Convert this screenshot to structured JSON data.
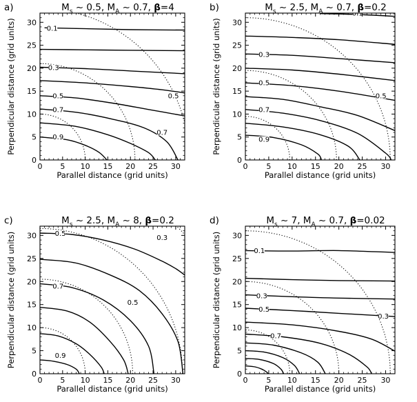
{
  "figure": {
    "background": "#ffffff",
    "ink": "#000000"
  },
  "chart_data": [
    {
      "type": "contour",
      "panel": "a)",
      "title_parts": [
        "M",
        "s",
        " ~ 0.5, M",
        "A",
        " ~ 0.7, ",
        "β",
        "=4"
      ],
      "xlabel": "Parallel distance (grid units)",
      "ylabel": "Perpendicular distance (grid units)",
      "xlim": [
        0,
        32
      ],
      "ylim": [
        0,
        32
      ],
      "xticks": [
        0,
        5,
        10,
        15,
        20,
        25,
        30
      ],
      "yticks": [
        0,
        5,
        10,
        15,
        20,
        25,
        30
      ],
      "contours": [
        {
          "points": [
            [
              1,
              28.8
            ],
            [
              10,
              28.6
            ],
            [
              20,
              28.4
            ],
            [
              32,
              28.3
            ]
          ]
        },
        {
          "points": [
            [
              0,
              24.1
            ],
            [
              10,
              24.0
            ],
            [
              20,
              23.9
            ],
            [
              32,
              23.8
            ]
          ]
        },
        {
          "points": [
            [
              0,
              20.2
            ],
            [
              10,
              19.9
            ],
            [
              20,
              19.4
            ],
            [
              32,
              18.8
            ]
          ]
        },
        {
          "points": [
            [
              0,
              17.3
            ],
            [
              10,
              16.8
            ],
            [
              20,
              16.0
            ],
            [
              27,
              15.3
            ],
            [
              32,
              14.6
            ]
          ]
        },
        {
          "points": [
            [
              0,
              14.0
            ],
            [
              8,
              13.5
            ],
            [
              16,
              12.4
            ],
            [
              24,
              11.0
            ],
            [
              32,
              9.6
            ]
          ]
        },
        {
          "points": [
            [
              0,
              11.1
            ],
            [
              8,
              10.4
            ],
            [
              16,
              8.9
            ],
            [
              23,
              7.0
            ],
            [
              28,
              4.0
            ],
            [
              30.5,
              0
            ]
          ]
        },
        {
          "points": [
            [
              0,
              8.1
            ],
            [
              8,
              7.3
            ],
            [
              15,
              5.5
            ],
            [
              20,
              3.6
            ],
            [
              24,
              1.6
            ],
            [
              25.5,
              0
            ]
          ]
        },
        {
          "points": [
            [
              0,
              5.0
            ],
            [
              6,
              4.4
            ],
            [
              10,
              3.2
            ],
            [
              13,
              1.7
            ],
            [
              14.8,
              0
            ]
          ]
        }
      ],
      "dotted_arcs": [
        {
          "r": 10
        },
        {
          "r": 21
        },
        {
          "r": 33
        }
      ],
      "labels": [
        {
          "text": "0.1",
          "x": 2.7,
          "y": 28.7
        },
        {
          "text": "0.3",
          "x": 3.0,
          "y": 20.1
        },
        {
          "text": "0.5",
          "x": 29.5,
          "y": 14.0
        },
        {
          "text": "0.5",
          "x": 4.0,
          "y": 14.0
        },
        {
          "text": "0.7",
          "x": 27.0,
          "y": 6.0
        },
        {
          "text": "0.7",
          "x": 4.0,
          "y": 11.0
        },
        {
          "text": "0.9",
          "x": 4.0,
          "y": 5.0
        }
      ]
    },
    {
      "type": "contour",
      "panel": "b)",
      "title_parts": [
        "M",
        "s",
        " ~ 2.5, M",
        "A",
        " ~ 0.7, ",
        "β",
        "=0.2"
      ],
      "xlabel": "Parallel distance (grid units)",
      "ylabel": "Perpendicular distance (grid units)",
      "xlim": [
        0,
        32
      ],
      "ylim": [
        0,
        32
      ],
      "xticks": [
        0,
        5,
        10,
        15,
        20,
        25,
        30
      ],
      "yticks": [
        0,
        5,
        10,
        15,
        20,
        25,
        30
      ],
      "contours": [
        {
          "points": [
            [
              16,
              31.9
            ],
            [
              24,
              31.7
            ],
            [
              32,
              31.3
            ]
          ]
        },
        {
          "points": [
            [
              0,
              27.0
            ],
            [
              10,
              26.7
            ],
            [
              20,
              26.2
            ],
            [
              32,
              25.2
            ]
          ]
        },
        {
          "points": [
            [
              0,
              23.1
            ],
            [
              10,
              22.8
            ],
            [
              20,
              22.1
            ],
            [
              32,
              21.2
            ]
          ]
        },
        {
          "points": [
            [
              0,
              20.0
            ],
            [
              10,
              19.6
            ],
            [
              20,
              18.7
            ],
            [
              32,
              17.3
            ]
          ]
        },
        {
          "points": [
            [
              0,
              16.8
            ],
            [
              10,
              16.2
            ],
            [
              20,
              15.0
            ],
            [
              32,
              13.0
            ]
          ]
        },
        {
          "points": [
            [
              0,
              13.8
            ],
            [
              8,
              13.2
            ],
            [
              16,
              11.6
            ],
            [
              24,
              9.7
            ],
            [
              32,
              6.4
            ]
          ]
        },
        {
          "points": [
            [
              0,
              11.0
            ],
            [
              8,
              10.2
            ],
            [
              16,
              8.6
            ],
            [
              24,
              5.8
            ],
            [
              30,
              1.5
            ],
            [
              31.2,
              0
            ]
          ]
        },
        {
          "points": [
            [
              0,
              8.0
            ],
            [
              8,
              7.2
            ],
            [
              16,
              5.5
            ],
            [
              22,
              3.0
            ],
            [
              24.5,
              0
            ]
          ]
        },
        {
          "points": [
            [
              0,
              5.4
            ],
            [
              6,
              4.9
            ],
            [
              12,
              3.3
            ],
            [
              15.5,
              1.3
            ],
            [
              16.3,
              0
            ]
          ]
        }
      ],
      "dotted_arcs": [
        {
          "r": 9.5
        },
        {
          "r": 19.5
        },
        {
          "r": 31
        },
        {
          "r": 45
        }
      ],
      "labels": [
        {
          "text": "0.1",
          "x": 24.0,
          "y": 32.0
        },
        {
          "text": "0.3",
          "x": 4.0,
          "y": 23.0
        },
        {
          "text": "0.5",
          "x": 4.0,
          "y": 16.8
        },
        {
          "text": "0.5",
          "x": 29.0,
          "y": 14.0
        },
        {
          "text": "0.7",
          "x": 4.0,
          "y": 11.0
        },
        {
          "text": "0.9",
          "x": 4.0,
          "y": 4.5
        }
      ]
    },
    {
      "type": "contour",
      "panel": "c)",
      "title_parts": [
        "M",
        "s",
        " ~ 2.5, M",
        "A",
        " ~ 8, ",
        "β",
        "=0.2"
      ],
      "xlabel": "Parallel distance (grid units)",
      "ylabel": "Perpendicular distance (grid units)",
      "xlim": [
        0,
        32
      ],
      "ylim": [
        0,
        32
      ],
      "xticks": [
        0,
        5,
        10,
        15,
        20,
        25,
        30
      ],
      "yticks": [
        0,
        5,
        10,
        15,
        20,
        25,
        30
      ],
      "contours": [
        {
          "points": [
            [
              0,
              30.5
            ],
            [
              7,
              30.2
            ],
            [
              14,
              29.0
            ],
            [
              21,
              27.0
            ],
            [
              27,
              24.4
            ],
            [
              30,
              22.8
            ],
            [
              32,
              21.4
            ]
          ]
        },
        {
          "points": [
            [
              0,
              24.8
            ],
            [
              8,
              24.0
            ],
            [
              16,
              21.2
            ],
            [
              22,
              18.0
            ],
            [
              27,
              13.0
            ],
            [
              30.5,
              7.0
            ],
            [
              31.6,
              0
            ]
          ]
        },
        {
          "points": [
            [
              0,
              19.5
            ],
            [
              7,
              18.7
            ],
            [
              14,
              16.0
            ],
            [
              20,
              11.5
            ],
            [
              24,
              6.0
            ],
            [
              25.2,
              0
            ]
          ]
        },
        {
          "points": [
            [
              0,
              14.4
            ],
            [
              6,
              13.6
            ],
            [
              11,
              11.2
            ],
            [
              15.5,
              7.0
            ],
            [
              18.5,
              3.0
            ],
            [
              19.5,
              0
            ]
          ]
        },
        {
          "points": [
            [
              0,
              8.7
            ],
            [
              4,
              8.2
            ],
            [
              8,
              6.5
            ],
            [
              11,
              4.2
            ],
            [
              13.5,
              1.5
            ],
            [
              14.2,
              0
            ]
          ]
        },
        {
          "points": [
            [
              0,
              3.0
            ],
            [
              3,
              2.7
            ],
            [
              6,
              2.0
            ],
            [
              8,
              1.0
            ],
            [
              8.7,
              0
            ]
          ]
        }
      ],
      "dotted_arcs": [
        {
          "r": 10
        },
        {
          "r": 20.5
        },
        {
          "r": 31.5
        },
        {
          "r": 44
        }
      ],
      "labels": [
        {
          "text": "0.5",
          "x": 4.5,
          "y": 30.4
        },
        {
          "text": "0.3",
          "x": 27.0,
          "y": 29.5
        },
        {
          "text": "0.7",
          "x": 4.0,
          "y": 19.0
        },
        {
          "text": "0.5",
          "x": 20.5,
          "y": 15.5
        },
        {
          "text": "0.9",
          "x": 4.5,
          "y": 4.0
        }
      ]
    },
    {
      "type": "contour",
      "panel": "d)",
      "title_parts": [
        "M",
        "s",
        " ~ 7, M",
        "A",
        " ~ 0.7, ",
        "β",
        "=0.02"
      ],
      "xlabel": "Parallel distance (grid units)",
      "ylabel": "Perpendicular distance (grid units)",
      "xlim": [
        0,
        32
      ],
      "ylim": [
        0,
        32
      ],
      "xticks": [
        0,
        5,
        10,
        15,
        20,
        25,
        30
      ],
      "yticks": [
        0,
        5,
        10,
        15,
        20,
        25,
        30
      ],
      "contours": [
        {
          "points": [
            [
              0,
              26.7
            ],
            [
              10,
              26.6
            ],
            [
              20,
              26.7
            ],
            [
              32,
              26.3
            ]
          ]
        },
        {
          "points": [
            [
              0,
              20.7
            ],
            [
              10,
              20.4
            ],
            [
              20,
              20.2
            ],
            [
              32,
              20.1
            ]
          ]
        },
        {
          "points": [
            [
              0,
              17.1
            ],
            [
              10,
              16.7
            ],
            [
              20,
              16.4
            ],
            [
              32,
              16.2
            ]
          ]
        },
        {
          "points": [
            [
              0,
              14.2
            ],
            [
              10,
              13.7
            ],
            [
              20,
              13.1
            ],
            [
              32,
              12.4
            ]
          ]
        },
        {
          "points": [
            [
              0,
              11.2
            ],
            [
              10,
              10.6
            ],
            [
              20,
              9.2
            ],
            [
              27,
              7.5
            ],
            [
              32,
              4.9
            ]
          ]
        },
        {
          "points": [
            [
              0,
              8.6
            ],
            [
              8,
              8.0
            ],
            [
              16,
              6.6
            ],
            [
              22,
              4.3
            ],
            [
              26,
              1.5
            ],
            [
              27,
              0
            ]
          ]
        },
        {
          "points": [
            [
              0,
              6.7
            ],
            [
              6,
              6.2
            ],
            [
              12,
              4.5
            ],
            [
              15.5,
              2.5
            ],
            [
              17.1,
              0
            ]
          ]
        },
        {
          "points": [
            [
              0,
              5.0
            ],
            [
              4,
              4.7
            ],
            [
              8,
              3.5
            ],
            [
              10.5,
              1.8
            ],
            [
              11.6,
              0
            ]
          ]
        },
        {
          "points": [
            [
              0,
              3.3
            ],
            [
              3,
              3.1
            ],
            [
              6,
              2.2
            ],
            [
              7.6,
              1.0
            ],
            [
              8.2,
              0
            ]
          ]
        },
        {
          "points": [
            [
              0,
              1.7
            ],
            [
              2,
              1.5
            ],
            [
              3.5,
              1.0
            ],
            [
              4.5,
              0.4
            ],
            [
              4.9,
              0
            ]
          ]
        }
      ],
      "dotted_arcs": [
        {
          "r": 9.5
        },
        {
          "r": 20
        },
        {
          "r": 31
        },
        {
          "r": 45
        }
      ],
      "labels": [
        {
          "text": "0.1",
          "x": 3.0,
          "y": 26.7
        },
        {
          "text": "0.3",
          "x": 3.5,
          "y": 16.9
        },
        {
          "text": "0.3",
          "x": 29.5,
          "y": 12.5
        },
        {
          "text": "0.5",
          "x": 4.0,
          "y": 14.0
        },
        {
          "text": "0.7",
          "x": 6.5,
          "y": 8.2
        }
      ]
    }
  ]
}
